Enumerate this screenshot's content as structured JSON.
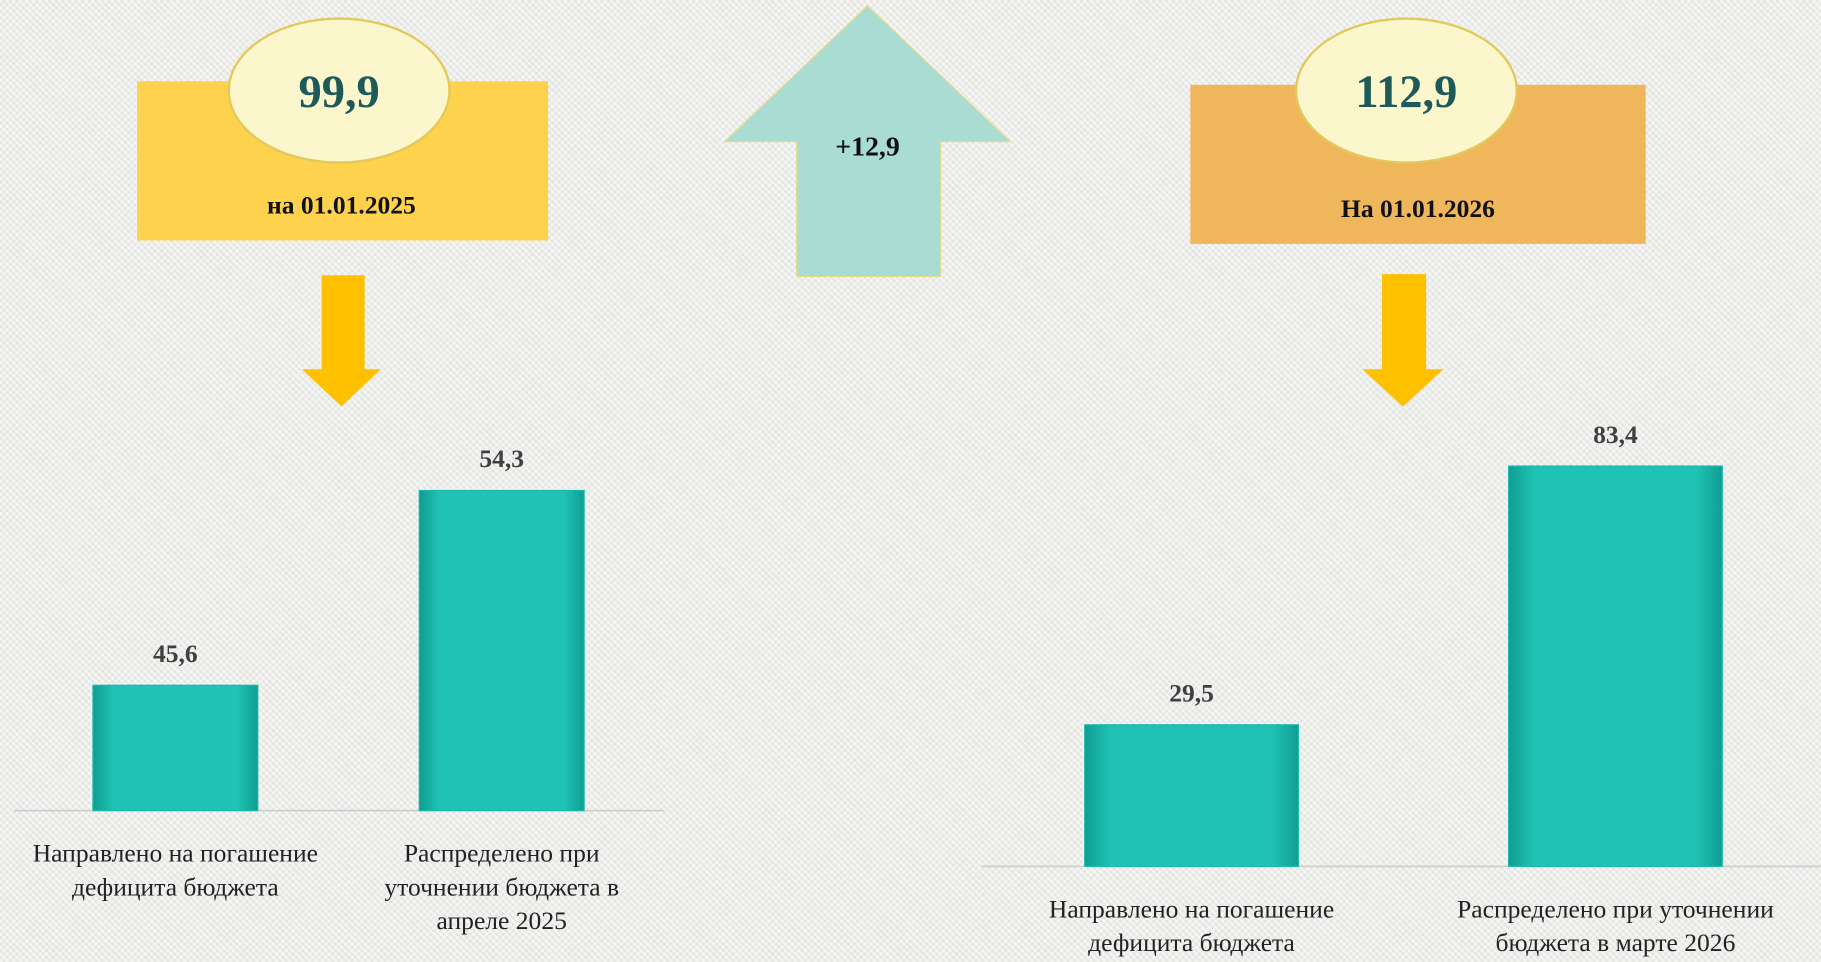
{
  "summary": {
    "start": {
      "amount": "99,9",
      "date": "на 01.01.2025"
    },
    "change": "+12,9",
    "end": {
      "amount": "112,9",
      "date": "На 01.01.2026"
    }
  },
  "chart_data": [
    {
      "type": "bar",
      "categories": [
        "Направлено на погашение дефицита бюджета",
        "Распределено при уточнении бюджета в апреле 2025"
      ],
      "values": [
        45.6,
        54.3
      ],
      "value_labels": [
        "45,6",
        "54,3"
      ],
      "color": "#1ab9ab",
      "ylim": [
        40,
        58
      ]
    },
    {
      "type": "bar",
      "categories": [
        "Направлено на погашение дефицита бюджета",
        "Распределено при уточнении бюджета в марте 2026"
      ],
      "values": [
        29.5,
        83.4
      ],
      "value_labels": [
        "29,5",
        "83,4"
      ],
      "color": "#1ab9ab",
      "ylim": [
        0,
        90
      ]
    }
  ]
}
